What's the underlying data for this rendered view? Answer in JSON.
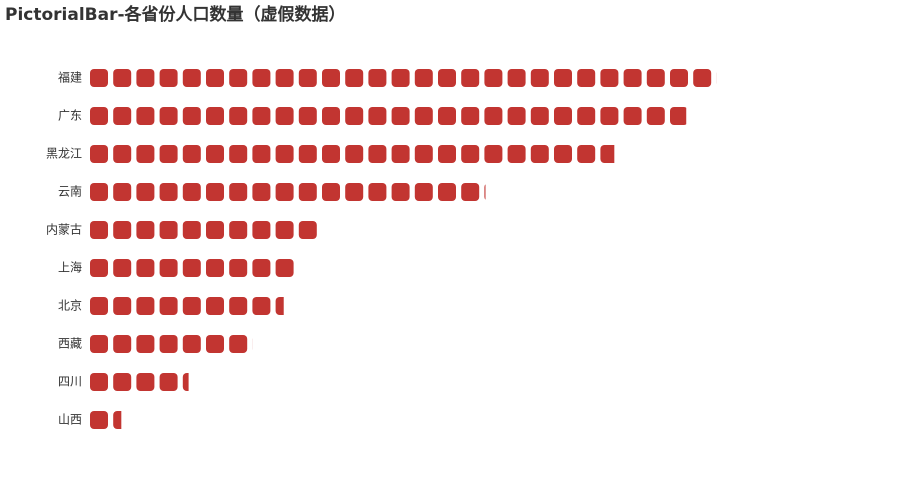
{
  "chart_data": {
    "type": "pictorialBar",
    "title": "PictorialBar-各省份人口数量（虚假数据）",
    "categories": [
      "福建",
      "广东",
      "黑龙江",
      "云南",
      "内蒙古",
      "上海",
      "北京",
      "西藏",
      "四川",
      "山西"
    ],
    "values": [
      27,
      25.7,
      22.6,
      17.05,
      9.8,
      9,
      8.35,
      7,
      4.25,
      1.35
    ],
    "color": "#c23531",
    "xlim": [
      0,
      33
    ]
  }
}
